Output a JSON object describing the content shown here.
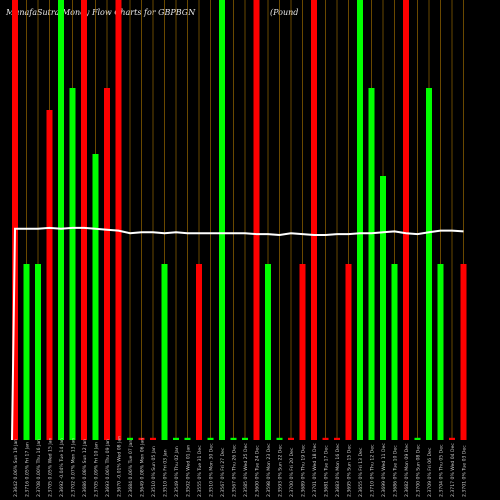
{
  "title": "MunafaSutra  Money Flow  Charts for GBPBGN",
  "title_suffix": "(Pound",
  "colors": {
    "background": "#000000",
    "up": "#00ff00",
    "down": "#ff0000",
    "line": "#ffffff",
    "grid": "#b07800",
    "label": "#d0d0d0"
  },
  "chart_data": {
    "type": "bar",
    "ylim": [
      0,
      100
    ],
    "categories": [
      "Sun 19 Jan",
      "Fri 17 Jan",
      "Thu 16 Jan",
      "Wed 15 Jan",
      "Tue 14 Jan",
      "Mon 13 Jan",
      "Sun 12 Jan",
      "Fri 10 Jan",
      "Thu 09 Jan",
      "Wed 08 Jan",
      "Tue 07 Jan",
      "Mon 06 Jan",
      "Sun 05 Jan",
      "Fri 03 Jan",
      "Thu 02 Jan",
      "Wed 01 Jan",
      "Tue 31 Dec",
      "Mon 30 Dec",
      "Fri 27 Dec",
      "Thu 26 Dec",
      "Wed 25 Dec",
      "Tue 24 Dec",
      "Mon 23 Dec",
      "Sun 22 Dec",
      "Fri 20 Dec",
      "Thu 19 Dec",
      "Wed 18 Dec",
      "Tue 17 Dec",
      "Mon 16 Dec",
      "Sun 15 Dec",
      "Fri 13 Dec",
      "Thu 12 Dec",
      "Wed 11 Dec",
      "Tue 10 Dec",
      "Mon 09 Dec",
      "Sun 08 Dec",
      "Fri 06 Dec",
      "Thu 05 Dec",
      "Wed 04 Dec",
      "Tue 03 Dec"
    ],
    "x_tick_labels": [
      "2.3642 0.06%",
      "2.3716 0.05%",
      "2.3708 0.00%",
      "2.3705 0.05%",
      "2.3692 -0.04%",
      "2.3702 0.07%",
      "2.3686 0.08%",
      "2.3705 0.09%",
      "2.3693 0.06%",
      "2.3670 -0.01%",
      "2.3684 0.06%",
      "2.3649 0.08%",
      "2.3510 0%",
      "2.3510 0%",
      "2.3549 0%",
      "2.3502 0%",
      "2.3555 0%",
      "2.3510 0%",
      "2.3567 0%",
      "2.3567 0%",
      "2.3585 0%",
      "2.3600 0%",
      "2.3598 0%",
      "2.3593 0%",
      "2.3700 0%",
      "2.3689 0%",
      "2.3701 0%",
      "2.3681 0%",
      "2.3683 0%",
      "2.3695 0%",
      "2.3655 0%",
      "2.3710 0%",
      "2.3699 0%",
      "2.3686 0%",
      "2.3682 0%",
      "2.3700 0%",
      "2.3709 0%",
      "2.3704 0%",
      "2.3717 0%",
      "2.3701 0%"
    ],
    "series": [
      {
        "direction": [
          "down",
          "up",
          "up",
          "down",
          "up",
          "up",
          "down",
          "up",
          "down",
          "down",
          "up",
          "down",
          "down",
          "up",
          "up",
          "up",
          "down",
          "up",
          "up",
          "up",
          "up",
          "down",
          "up",
          "up",
          "down",
          "down",
          "down",
          "down",
          "down",
          "down",
          "up",
          "up",
          "up",
          "up",
          "down",
          "up",
          "up",
          "up",
          "down",
          "down"
        ],
        "values": [
          100,
          40,
          40,
          75,
          100,
          80,
          100,
          65,
          80,
          100,
          0.5,
          0.5,
          0.5,
          40,
          0.5,
          0.5,
          40,
          0.5,
          100,
          0.5,
          0.5,
          100,
          40,
          0.5,
          0.5,
          40,
          100,
          0.5,
          0.5,
          40,
          100,
          80,
          60,
          40,
          100,
          0.5,
          80,
          40,
          0.5,
          40
        ]
      },
      {
        "type": "line",
        "values": [
          48,
          48,
          48,
          48.2,
          48,
          48.2,
          48.2,
          48,
          47.8,
          47.6,
          47,
          47.2,
          47.2,
          47,
          47.2,
          47,
          47,
          47,
          47,
          47,
          47,
          46.8,
          46.8,
          46.6,
          47,
          46.8,
          46.6,
          46.6,
          46.8,
          46.8,
          47,
          47,
          47.2,
          47.4,
          47,
          46.8,
          47.2,
          47.6,
          47.6,
          47.4
        ]
      }
    ]
  }
}
